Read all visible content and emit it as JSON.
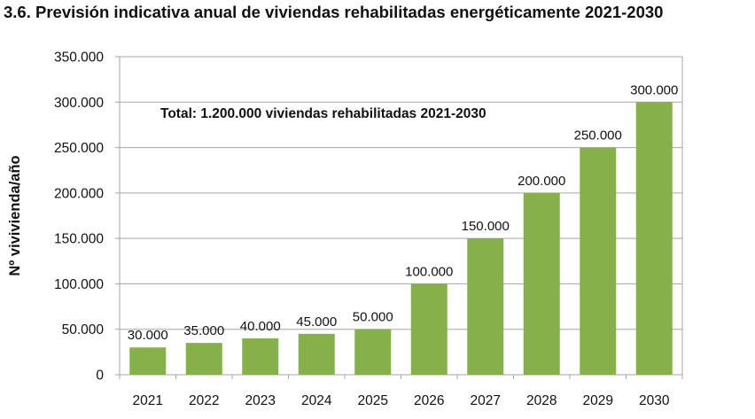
{
  "figure": {
    "title": "3.6. Previsión indicativa anual de viviendas rehabilitadas energéticamente 2021-2030"
  },
  "chart_data": {
    "type": "bar",
    "title": "3.6. Previsión indicativa anual de viviendas rehabilitadas energéticamente 2021-2030",
    "xlabel": "",
    "ylabel": "Nº vivivienda/año",
    "categories": [
      "2021",
      "2022",
      "2023",
      "2024",
      "2025",
      "2026",
      "2027",
      "2028",
      "2029",
      "2030"
    ],
    "values": [
      30000,
      35000,
      40000,
      45000,
      50000,
      100000,
      150000,
      200000,
      250000,
      300000
    ],
    "value_labels": [
      "30.000",
      "35.000",
      "40.000",
      "45.000",
      "50.000",
      "100.000",
      "150.000",
      "200.000",
      "250.000",
      "300.000"
    ],
    "ylim": [
      0,
      350000
    ],
    "yticks": [
      0,
      50000,
      100000,
      150000,
      200000,
      250000,
      300000,
      350000
    ],
    "ytick_labels": [
      "0",
      "50.000",
      "100.000",
      "150.000",
      "200.000",
      "250.000",
      "300.000",
      "350.000"
    ],
    "grid": "horizontal",
    "legend": "none",
    "bar_color": "#86b04a",
    "annotation": "Total: 1.200.000 viviendas rehabilitadas 2021-2030"
  }
}
